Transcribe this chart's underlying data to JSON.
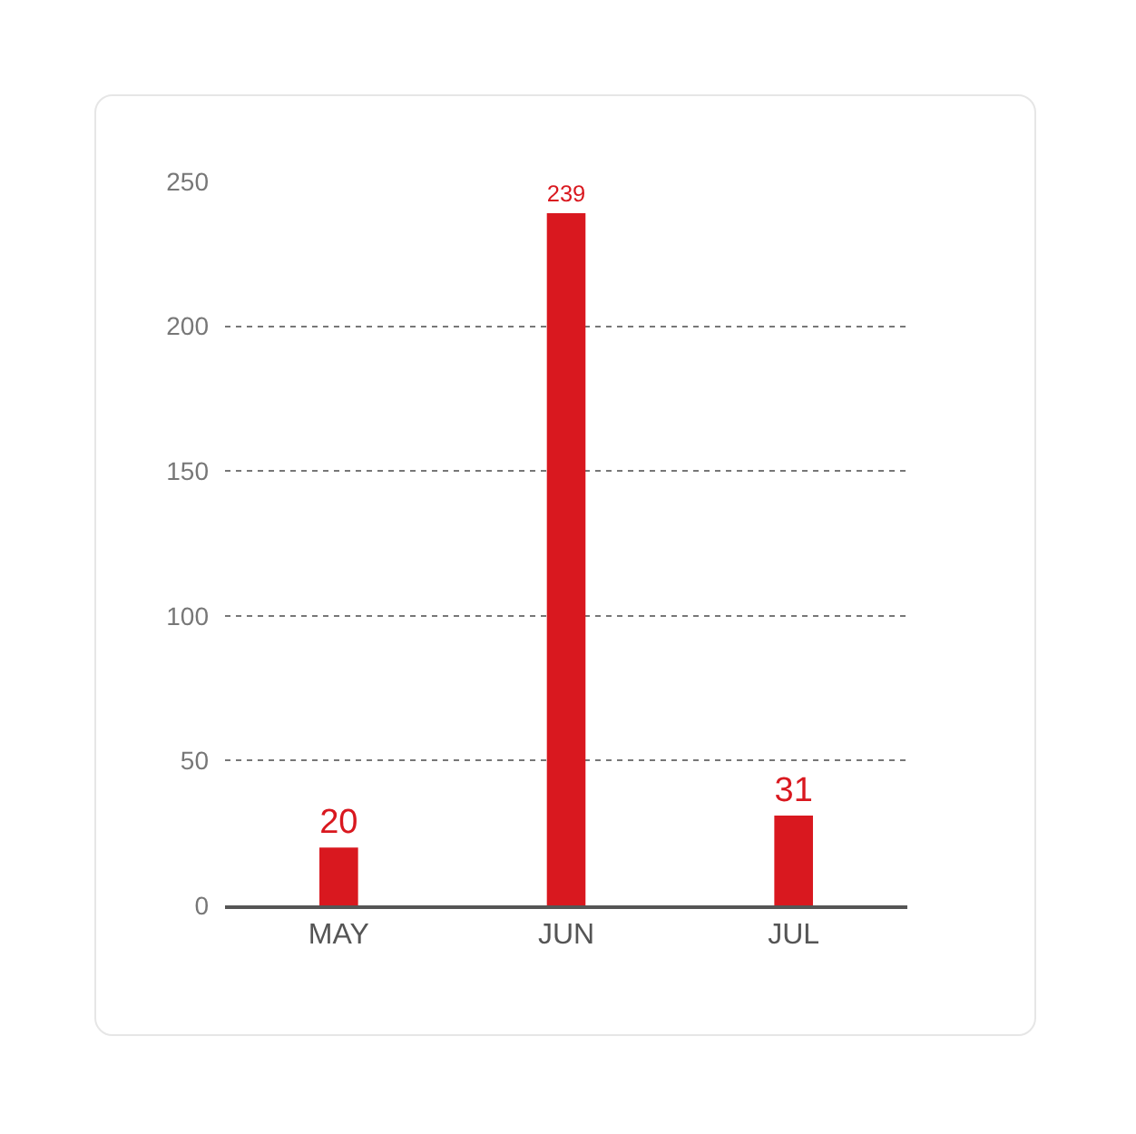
{
  "chart_data": {
    "type": "bar",
    "categories": [
      "MAY",
      "JUN",
      "JUL"
    ],
    "values": [
      20,
      239,
      31
    ],
    "color": "#d9181f",
    "data_labels": true,
    "ylim": [
      0,
      250
    ],
    "yticks": [
      0,
      50,
      100,
      150,
      200,
      250
    ],
    "grid": "y",
    "legend": false
  }
}
